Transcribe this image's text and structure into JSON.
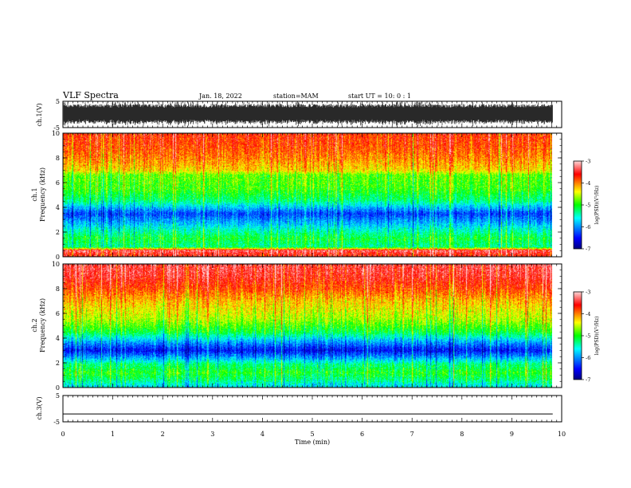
{
  "header": {
    "title": "VLF Spectra",
    "date": "Jan. 18, 2022",
    "station": "station=MAM",
    "start": "start UT =  10: 0 : 1"
  },
  "chart_data": [
    {
      "type": "line",
      "panel": "waveform-ch1",
      "ylabel": "ch.1(V)",
      "ylim": [
        -5,
        5
      ],
      "yticks": [
        {
          "v": 5,
          "label": "5"
        },
        {
          "v": -5,
          "label": "-5"
        }
      ],
      "xlim": [
        0,
        10
      ],
      "note": "dense noise waveform filling roughly -4 to +4 V"
    },
    {
      "type": "heatmap",
      "panel": "spectrogram-ch1",
      "ylabel": "ch.1 Frequency (kHz)",
      "ylim": [
        0,
        10
      ],
      "yticks": [
        "0",
        "2",
        "4",
        "6",
        "8",
        "10"
      ],
      "xlim": [
        0,
        10
      ],
      "data_extent_min": 9.82,
      "colorbar": {
        "label": "log(PSD)(V²/Hz)",
        "range": [
          -7,
          -3
        ],
        "ticks": [
          "-3",
          "-4",
          "-5",
          "-6",
          "-7"
        ]
      },
      "power_profile": [
        {
          "f": 0.2,
          "level": -3.6
        },
        {
          "f": 0.5,
          "level": -3.3
        },
        {
          "f": 0.8,
          "level": -5.3
        },
        {
          "f": 1.5,
          "level": -5.1
        },
        {
          "f": 2.2,
          "level": -5.5
        },
        {
          "f": 2.8,
          "level": -5.9
        },
        {
          "f": 3.5,
          "level": -6.3
        },
        {
          "f": 4.5,
          "level": -5.3
        },
        {
          "f": 5.5,
          "level": -4.9
        },
        {
          "f": 6.6,
          "level": -4.8
        },
        {
          "f": 7.0,
          "level": -4.3
        },
        {
          "f": 8.0,
          "level": -4.0
        },
        {
          "f": 9.0,
          "level": -3.8
        },
        {
          "f": 10.0,
          "level": -3.7
        }
      ]
    },
    {
      "type": "heatmap",
      "panel": "spectrogram-ch2",
      "ylabel": "ch.2 Frequency (kHz)",
      "ylim": [
        0,
        10
      ],
      "yticks": [
        "0",
        "2",
        "4",
        "6",
        "8",
        "10"
      ],
      "xlim": [
        0,
        10
      ],
      "data_extent_min": 9.82,
      "colorbar": {
        "label": "log(PSD)(V²/Hz)",
        "range": [
          -7,
          -3
        ],
        "ticks": [
          "-3",
          "-4",
          "-5",
          "-6",
          "-7"
        ]
      },
      "power_profile": [
        {
          "f": 0.2,
          "level": -5.6
        },
        {
          "f": 0.6,
          "level": -5.3
        },
        {
          "f": 1.2,
          "level": -5.0
        },
        {
          "f": 1.9,
          "level": -5.3
        },
        {
          "f": 2.4,
          "level": -5.9
        },
        {
          "f": 3.0,
          "level": -6.5
        },
        {
          "f": 3.6,
          "level": -6.0
        },
        {
          "f": 4.5,
          "level": -5.1
        },
        {
          "f": 5.5,
          "level": -4.6
        },
        {
          "f": 7.0,
          "level": -4.2
        },
        {
          "f": 8.0,
          "level": -3.8
        },
        {
          "f": 9.0,
          "level": -3.5
        },
        {
          "f": 10.0,
          "level": -3.4
        }
      ]
    },
    {
      "type": "line",
      "panel": "waveform-ch3",
      "ylabel": "ch.3(V)",
      "ylim": [
        -5,
        5
      ],
      "yticks": [
        {
          "v": 5,
          "label": "5"
        },
        {
          "v": -5,
          "label": "-5"
        }
      ],
      "xlim": [
        0,
        10
      ],
      "constant_value": -2,
      "xlabel": "Time (min)",
      "xticks": [
        "0",
        "1",
        "2",
        "3",
        "4",
        "5",
        "6",
        "7",
        "8",
        "9",
        "10"
      ]
    }
  ]
}
